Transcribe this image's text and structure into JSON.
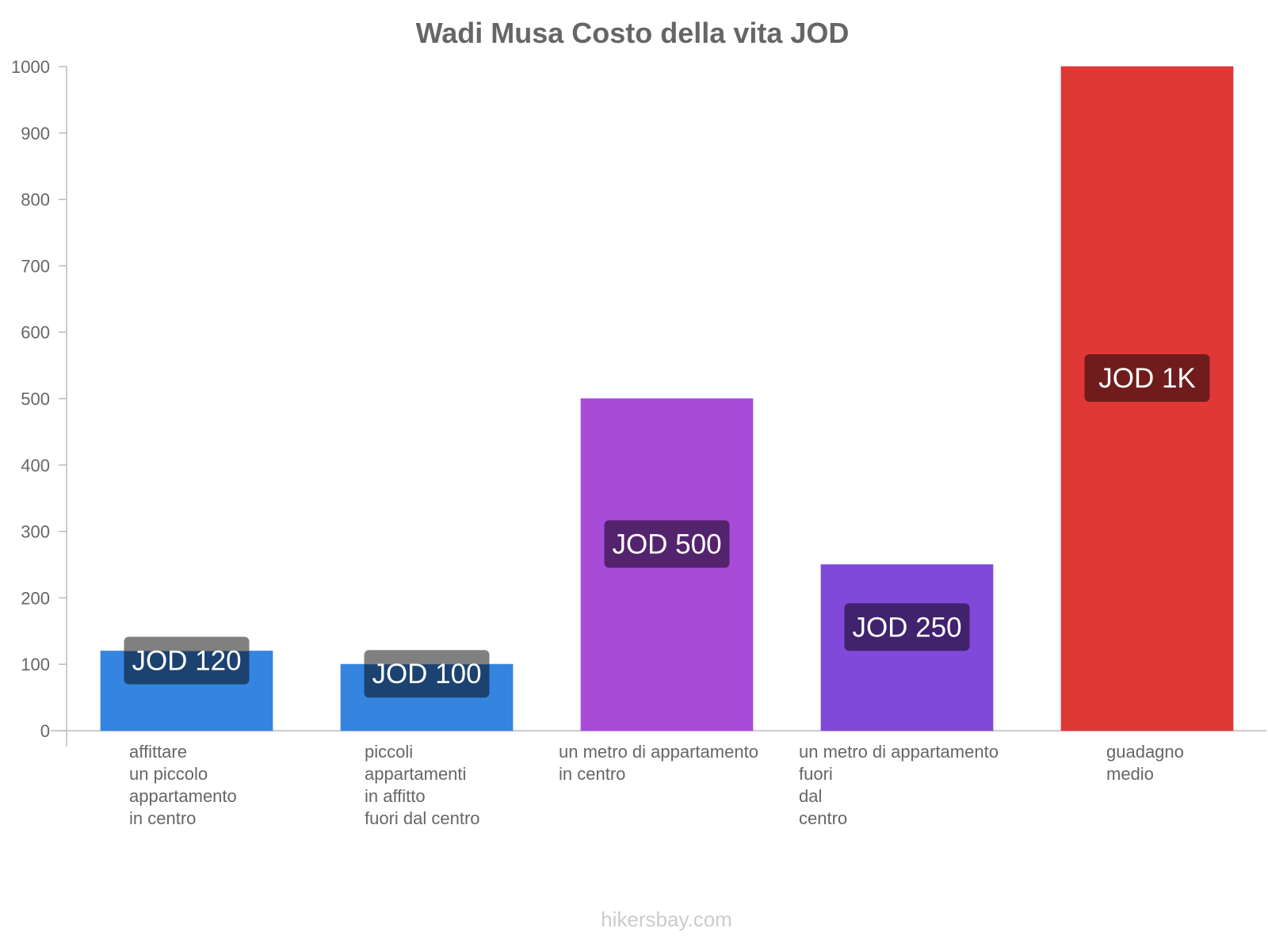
{
  "chart_data": {
    "type": "bar",
    "title": "Wadi Musa Costo della vita JOD",
    "xlabel": "",
    "ylabel": "",
    "ylim": [
      0,
      1000
    ],
    "yticks": [
      0,
      100,
      200,
      300,
      400,
      500,
      600,
      700,
      800,
      900,
      1000
    ],
    "grid": false,
    "categories": [
      [
        "affittare",
        "un piccolo",
        "appartamento",
        "in centro"
      ],
      [
        "piccoli",
        "appartamenti",
        "in affitto",
        "fuori dal centro"
      ],
      [
        "un metro di appartamento",
        "in centro"
      ],
      [
        "un metro di appartamento",
        "fuori",
        "dal",
        "centro"
      ],
      [
        "guadagno",
        "medio"
      ]
    ],
    "values": [
      120,
      100,
      500,
      250,
      1000
    ],
    "data_labels": [
      "JOD 120",
      "JOD 100",
      "JOD 500",
      "JOD 250",
      "JOD 1K"
    ],
    "bar_colors": [
      "#3584e0",
      "#3584e0",
      "#a84bd9",
      "#8149d9",
      "#e03737"
    ],
    "label_bg_colors": [
      "#1c426f",
      "#1c426f",
      "#54236d",
      "#40226d",
      "#701c1c"
    ],
    "label_bg_overflow_color": "#808080"
  },
  "footer": "hikersbay.com"
}
